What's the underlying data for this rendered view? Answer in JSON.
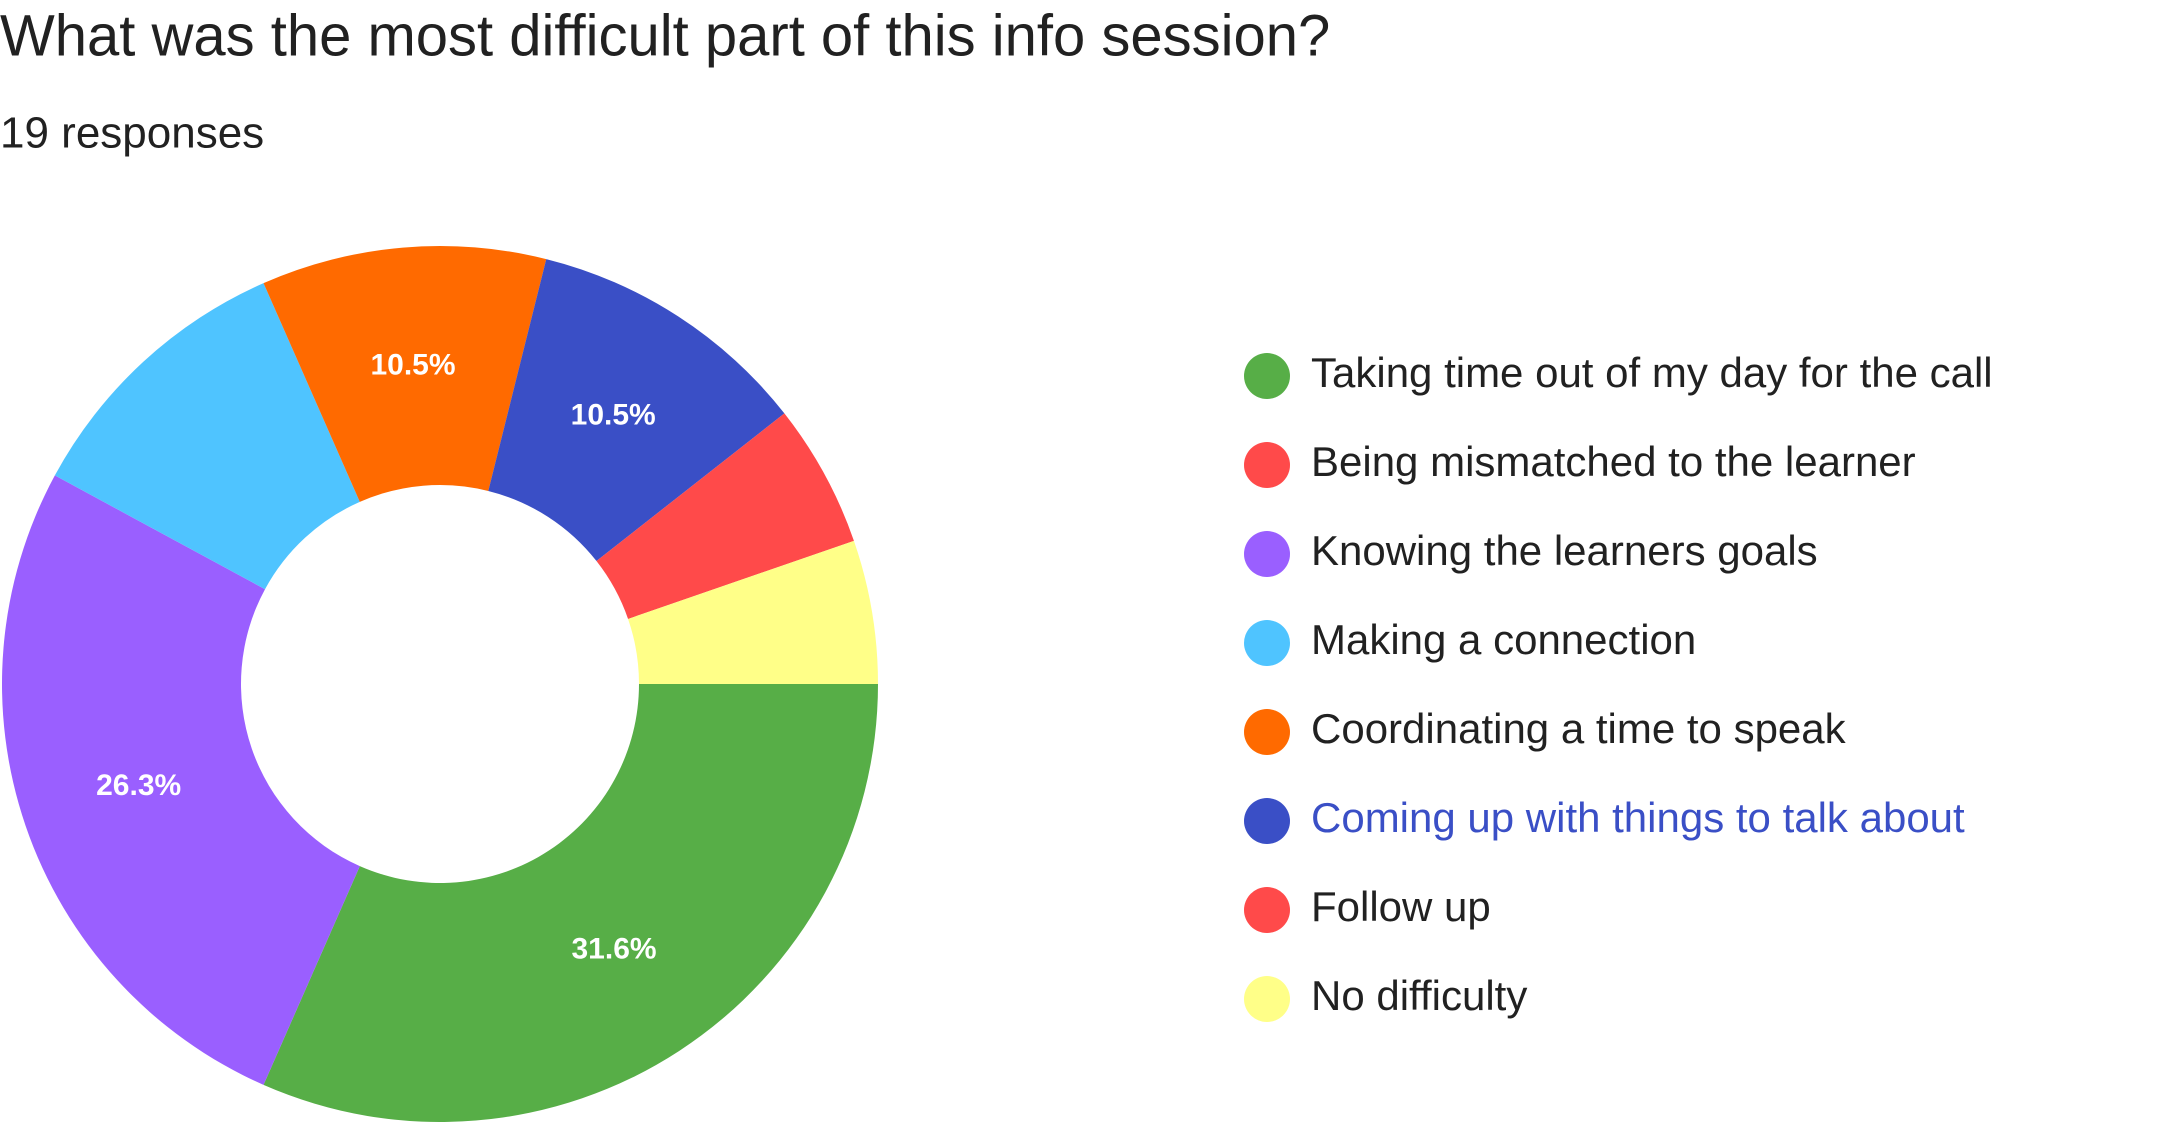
{
  "chart_data": {
    "type": "donut",
    "title": "What was the most difficult part of this info session?",
    "subtitle": "19 responses",
    "categories": [
      "Taking time out of my day for the call",
      "Being mismatched to the learner",
      "Knowing the learners goals",
      "Making a connection",
      "Coordinating a time to speak",
      "Coming up with things to talk about",
      "Follow up",
      "No difficulty"
    ],
    "values": [
      31.6,
      0,
      26.3,
      10.5,
      10.5,
      10.5,
      5.3,
      5.3
    ],
    "value_labels": [
      "31.6%",
      null,
      "26.3%",
      null,
      "10.5%",
      "10.5%",
      null,
      null
    ],
    "colors": [
      "#57ae47",
      "#ff4a4a",
      "#9a5fff",
      "#4fc4ff",
      "#ff6a00",
      "#3a4fc6",
      "#ff4a4a",
      "#ffff88"
    ]
  }
}
